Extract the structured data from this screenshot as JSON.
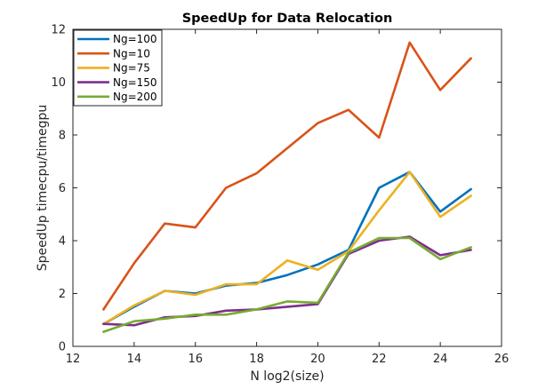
{
  "chart_data": {
    "type": "line",
    "title": "SpeedUp for Data Relocation",
    "xlabel": "N log2(size)",
    "ylabel": "SpeedUp timecpu/timegpu",
    "xlim": [
      12,
      26
    ],
    "ylim": [
      0,
      12
    ],
    "xticks": [
      12,
      14,
      16,
      18,
      20,
      22,
      24,
      26
    ],
    "yticks": [
      0,
      2,
      4,
      6,
      8,
      10,
      12
    ],
    "grid": false,
    "legend_position": "top-left",
    "x": [
      13,
      14,
      15,
      16,
      17,
      18,
      19,
      20,
      21,
      22,
      23,
      24,
      25
    ],
    "series": [
      {
        "name": "Ng=100",
        "color": "#0072BD",
        "values": [
          0.85,
          1.5,
          2.1,
          2.0,
          2.3,
          2.4,
          2.7,
          3.1,
          3.65,
          6.0,
          6.6,
          5.1,
          5.95
        ]
      },
      {
        "name": "Ng=10",
        "color": "#D95319",
        "values": [
          1.4,
          3.15,
          4.65,
          4.5,
          6.0,
          6.55,
          7.5,
          8.45,
          8.95,
          7.9,
          11.5,
          9.7,
          10.9
        ]
      },
      {
        "name": "Ng=75",
        "color": "#EDB120",
        "values": [
          0.85,
          1.55,
          2.1,
          1.95,
          2.35,
          2.35,
          3.25,
          2.9,
          3.6,
          5.15,
          6.6,
          4.9,
          5.7
        ]
      },
      {
        "name": "Ng=150",
        "color": "#7E2F8E",
        "values": [
          0.85,
          0.8,
          1.1,
          1.15,
          1.35,
          1.4,
          1.5,
          1.6,
          3.5,
          4.0,
          4.15,
          3.45,
          3.65
        ]
      },
      {
        "name": "Ng=200",
        "color": "#77AC30",
        "values": [
          0.55,
          0.95,
          1.05,
          1.2,
          1.2,
          1.4,
          1.7,
          1.65,
          3.55,
          4.1,
          4.1,
          3.3,
          3.75
        ]
      }
    ]
  }
}
